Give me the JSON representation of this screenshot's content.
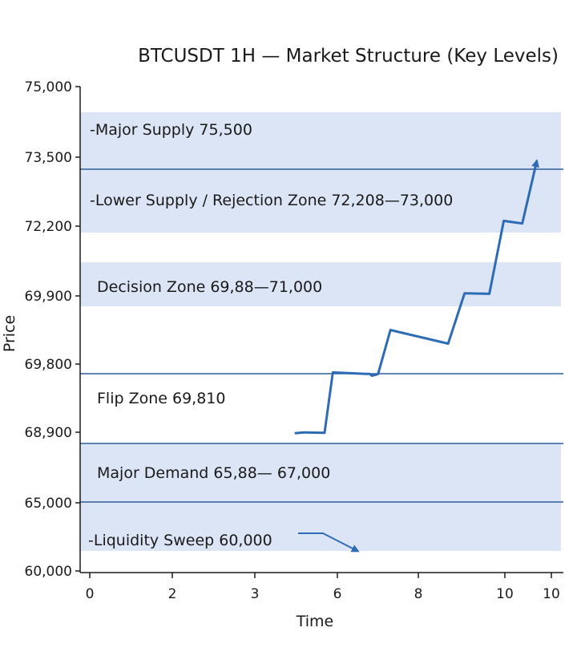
{
  "chart_data": {
    "type": "line",
    "title": "BTCUSDT 1H — Market Structure (Key Levels)",
    "xlabel": "Time",
    "ylabel": "Price",
    "y_tick_labels": [
      "75,000",
      "73,500",
      "72,200",
      "69,900",
      "69,800",
      "68,900",
      "65,000",
      "60,000"
    ],
    "x_tick_labels": [
      "0",
      "2",
      "3",
      "6",
      "8",
      "10",
      "10"
    ],
    "grid": false,
    "zones": [
      {
        "label": "-Major Supply 75,500"
      },
      {
        "label": "-Lower Supply / Rejection Zone 72,208—73,000"
      },
      {
        "label": "Decision Zone 69,88—71,000"
      },
      {
        "label": "Flip Zone 69,810"
      },
      {
        "label": "Major Demand 65,88— 67,000"
      },
      {
        "label": "-Liquidity Sweep 60,000"
      }
    ],
    "series": [
      {
        "x": [
          5.0,
          5.2,
          5.7,
          5.9,
          6.7,
          6.8,
          6.85,
          6.95,
          7.0,
          7.3,
          8.7,
          9.1,
          9.7,
          10.05,
          10.5,
          10.85
        ],
        "y": [
          68850,
          68890,
          68870,
          69690,
          69670,
          69670,
          69645,
          69660,
          69670,
          69850,
          69830,
          69985,
          69970,
          72300,
          72250,
          73420
        ]
      }
    ],
    "colors": {
      "zone_fill": "#dce5f5",
      "line": "#2d6cb5",
      "level_line": "#2f5f9c",
      "axis": "#1a1a1a"
    }
  }
}
